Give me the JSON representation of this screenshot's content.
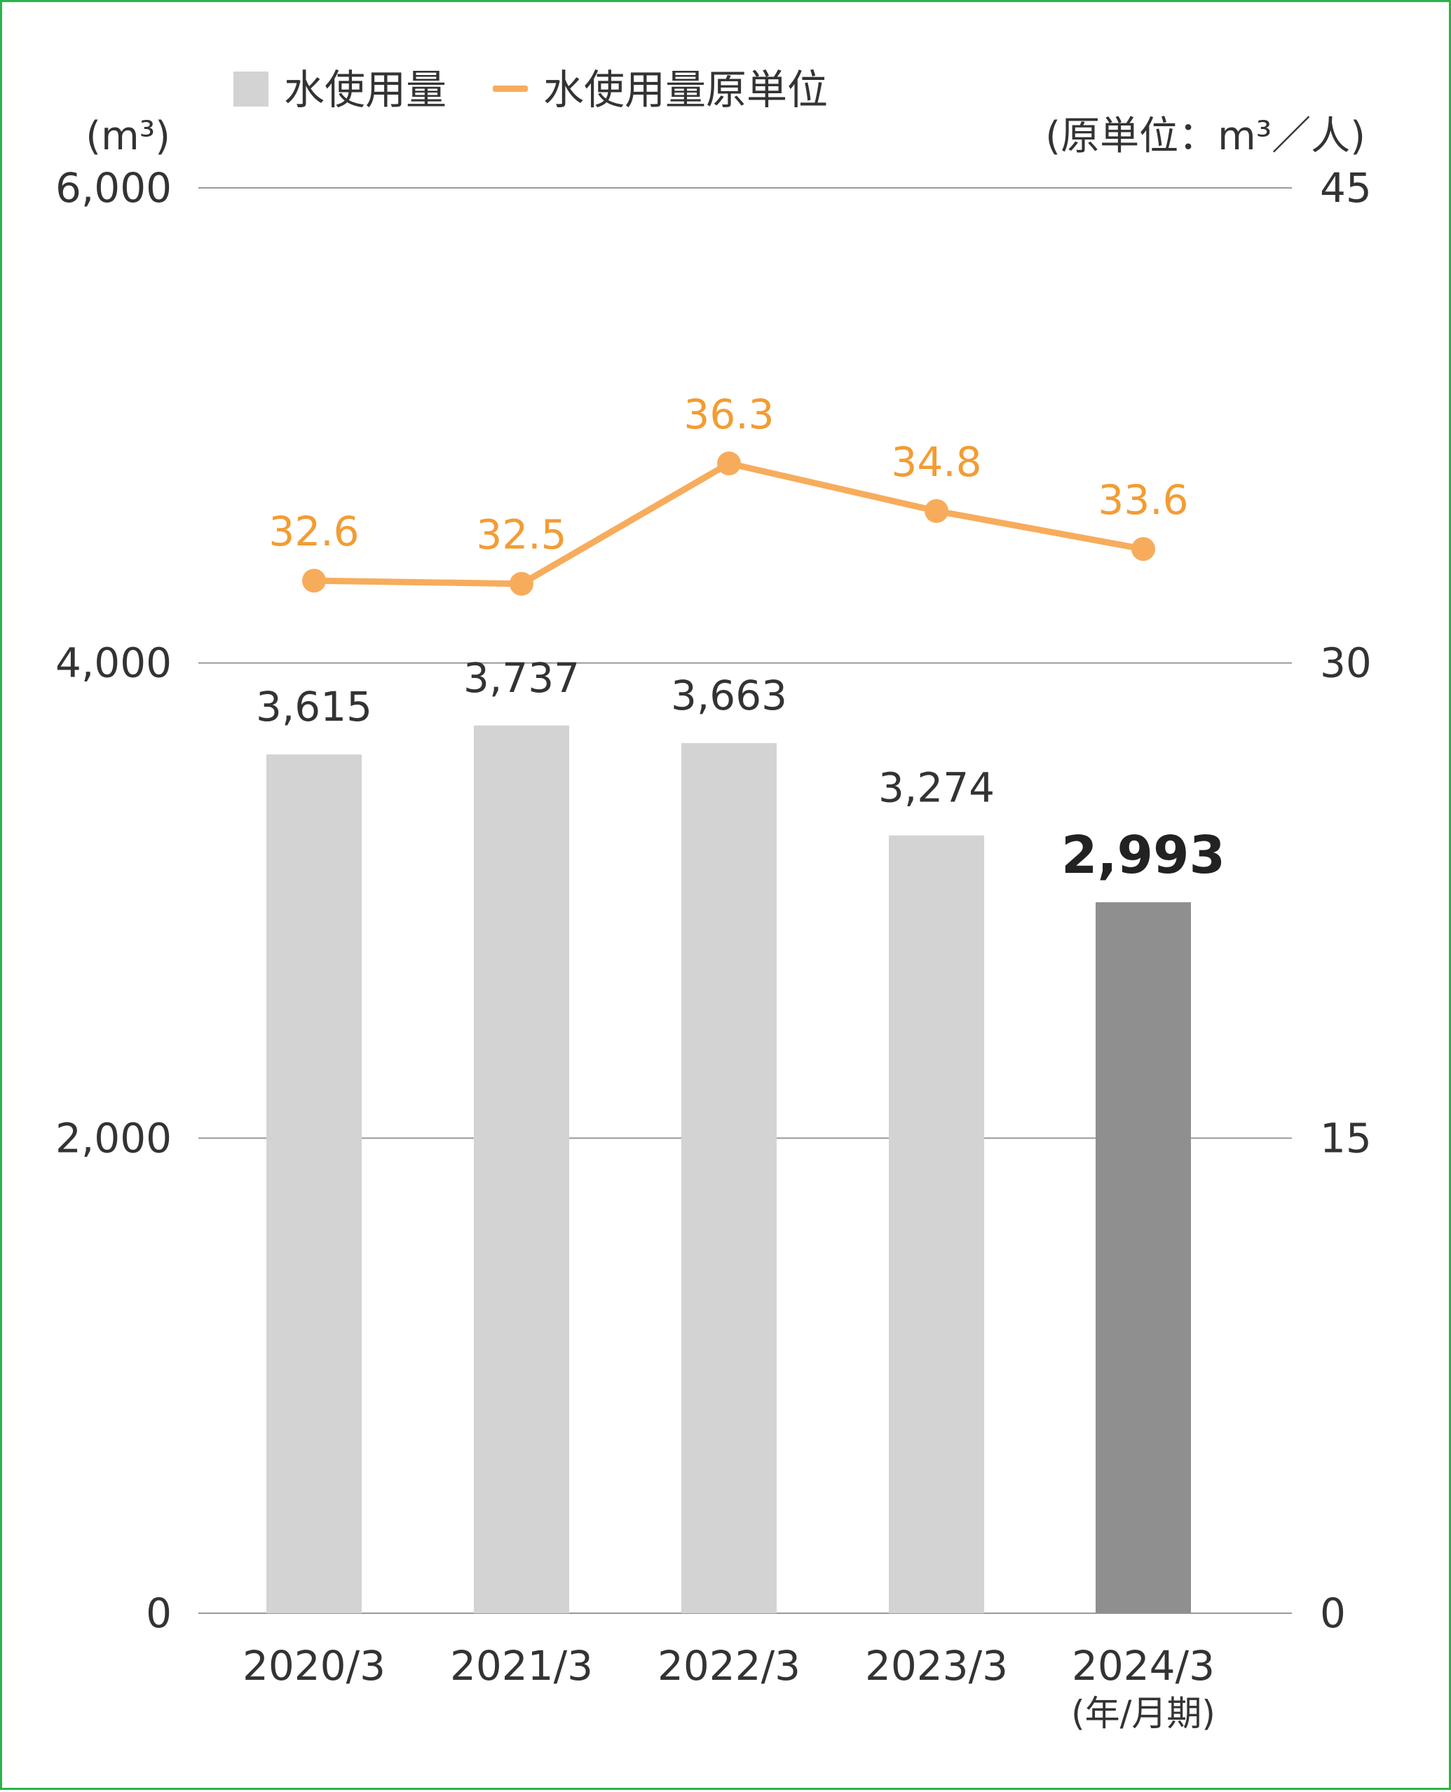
{
  "chart_data": {
    "type": "bar",
    "legend": {
      "placement": "top-left",
      "bar_series_name": "水使用量",
      "line_series_name": "水使用量原単位"
    },
    "left_axis": {
      "unit": "(m³)",
      "ylim": [
        0,
        6000
      ],
      "ticks": [
        "0",
        "2,000",
        "4,000",
        "6,000"
      ]
    },
    "right_axis": {
      "unit": "(原単位：m³／人)",
      "ylim": [
        0,
        45
      ],
      "ticks": [
        "0",
        "15",
        "30",
        "45"
      ]
    },
    "grid": true,
    "categories": [
      "2020/3",
      "2021/3",
      "2022/3",
      "2023/3",
      "2024/3"
    ],
    "period_label": "(年/月期)",
    "series": [
      {
        "name": "水使用量",
        "type": "bar",
        "axis": "left",
        "values": [
          3615,
          3737,
          3663,
          3274,
          2993
        ],
        "labels": [
          "3,615",
          "3,737",
          "3,663",
          "3,274",
          "2,993"
        ],
        "highlight_index": 4
      },
      {
        "name": "水使用量原単位",
        "type": "line",
        "axis": "right",
        "values": [
          32.6,
          32.5,
          36.3,
          34.8,
          33.6
        ],
        "labels": [
          "32.6",
          "32.5",
          "36.3",
          "34.8",
          "33.6"
        ]
      }
    ],
    "colors": {
      "bar": "#d3d3d3",
      "bar_highlight": "#8f8f8f",
      "line": "#f7ac5c",
      "line_label": "#f39c33",
      "grid": "#999999",
      "border": "#2bb34a"
    }
  }
}
